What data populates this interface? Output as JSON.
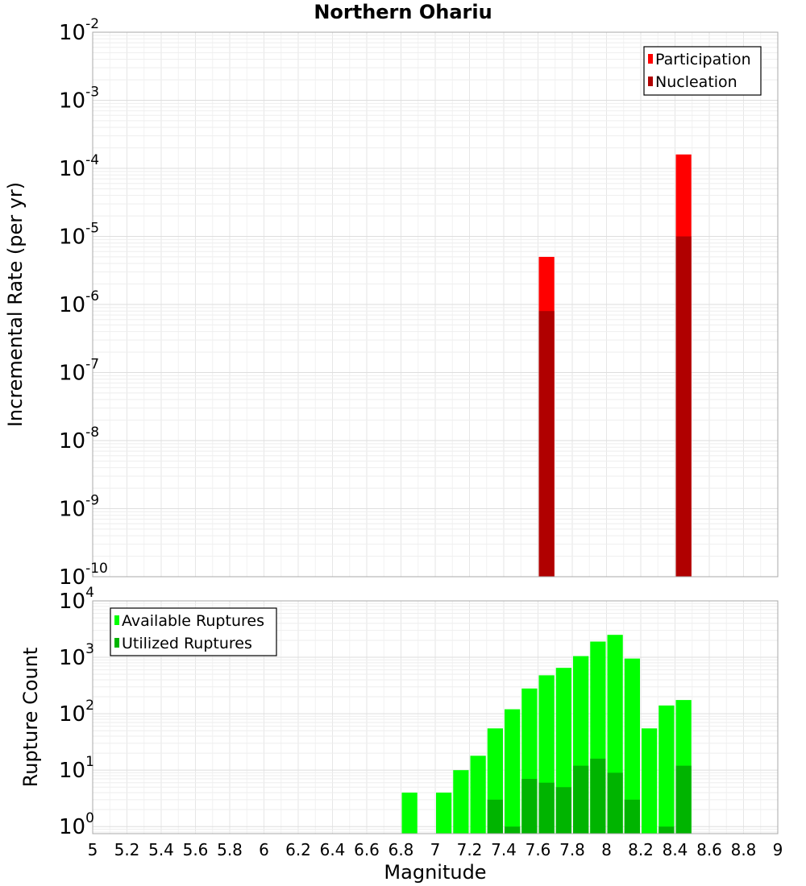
{
  "chart_data": [
    {
      "type": "bar",
      "title": "Northern Ohariu",
      "ylabel": "Incremental Rate (per yr)",
      "xlabel": "",
      "yscale": "log",
      "ylim": [
        1e-10,
        0.01
      ],
      "xlim": [
        5,
        9
      ],
      "bin_width": 0.1,
      "y_tick_exponents": [
        "-10",
        "-9",
        "-8",
        "-7",
        "-6",
        "-5",
        "-4",
        "-3",
        "-2"
      ],
      "y_tick_base": "10",
      "legend_position": "top-right",
      "series": [
        {
          "name": "Participation",
          "color": "#ff0000",
          "points": [
            {
              "x": 7.65,
              "y": 5e-06
            },
            {
              "x": 8.45,
              "y": 0.00016
            }
          ]
        },
        {
          "name": "Nucleation",
          "color": "#b00000",
          "points": [
            {
              "x": 7.65,
              "y": 8e-07
            },
            {
              "x": 8.45,
              "y": 1e-05
            }
          ]
        }
      ]
    },
    {
      "type": "bar",
      "title": "",
      "ylabel": "Rupture Count",
      "xlabel": "Magnitude",
      "yscale": "log",
      "ylim": [
        0.75,
        10000
      ],
      "xlim": [
        5,
        9
      ],
      "bin_width": 0.1,
      "y_tick_exponents": [
        "0",
        "1",
        "2",
        "3",
        "4"
      ],
      "y_tick_base": "10",
      "x_tick_labels": [
        "5",
        "5.2",
        "5.4",
        "5.6",
        "5.8",
        "6",
        "6.2",
        "6.4",
        "6.6",
        "6.8",
        "7",
        "7.2",
        "7.4",
        "7.6",
        "7.8",
        "8",
        "8.2",
        "8.4",
        "8.6",
        "8.8",
        "9"
      ],
      "legend_position": "top-left",
      "series": [
        {
          "name": "Available Ruptures",
          "color": "#00ff00",
          "points": [
            {
              "x": 6.85,
              "y": 4
            },
            {
              "x": 7.05,
              "y": 4
            },
            {
              "x": 7.15,
              "y": 10
            },
            {
              "x": 7.25,
              "y": 18
            },
            {
              "x": 7.35,
              "y": 55
            },
            {
              "x": 7.45,
              "y": 120
            },
            {
              "x": 7.55,
              "y": 280
            },
            {
              "x": 7.65,
              "y": 480
            },
            {
              "x": 7.75,
              "y": 650
            },
            {
              "x": 7.85,
              "y": 1050
            },
            {
              "x": 7.95,
              "y": 1900
            },
            {
              "x": 8.05,
              "y": 2500
            },
            {
              "x": 8.15,
              "y": 950
            },
            {
              "x": 8.25,
              "y": 55
            },
            {
              "x": 8.35,
              "y": 140
            },
            {
              "x": 8.45,
              "y": 175
            }
          ]
        },
        {
          "name": "Utilized Ruptures",
          "color": "#00b400",
          "points": [
            {
              "x": 7.35,
              "y": 3
            },
            {
              "x": 7.45,
              "y": 1
            },
            {
              "x": 7.55,
              "y": 7
            },
            {
              "x": 7.65,
              "y": 6
            },
            {
              "x": 7.75,
              "y": 5
            },
            {
              "x": 7.85,
              "y": 12
            },
            {
              "x": 7.95,
              "y": 16
            },
            {
              "x": 8.05,
              "y": 9
            },
            {
              "x": 8.15,
              "y": 3
            },
            {
              "x": 8.35,
              "y": 1
            },
            {
              "x": 8.45,
              "y": 12
            }
          ]
        }
      ]
    }
  ]
}
